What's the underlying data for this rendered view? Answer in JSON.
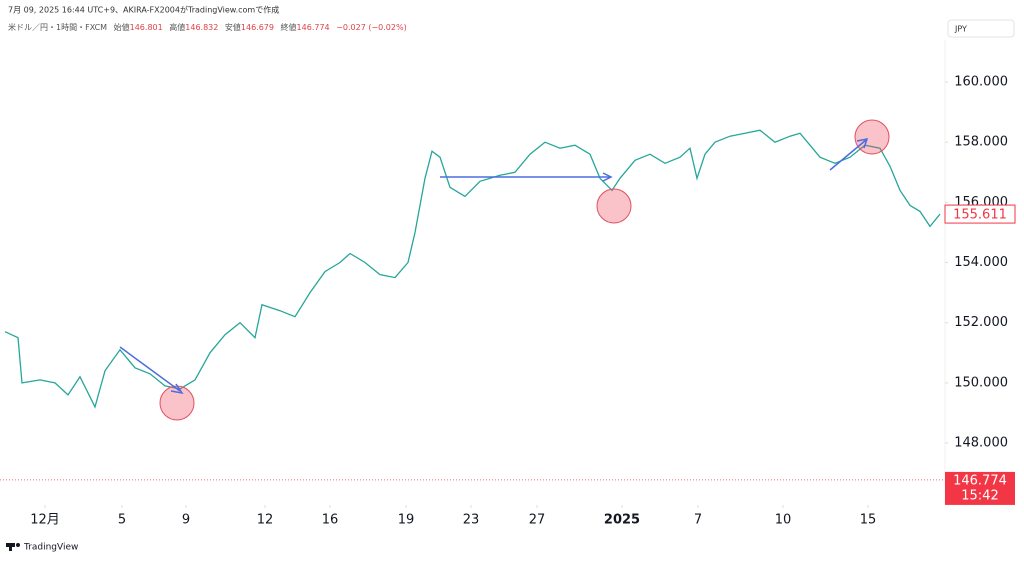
{
  "header": {
    "created": "7月 09, 2025 16:44 UTC+9、AKIRA-FX2004がTradingView.comで作成",
    "symbol": "米ドル／円・1時間・FXCM",
    "open_label": "始値",
    "open": "146.801",
    "high_label": "高値",
    "high": "146.832",
    "low_label": "安値",
    "low": "146.679",
    "close_label": "終値",
    "close": "146.774",
    "change": "−0.027 (−0.02%)"
  },
  "currency": "JPY",
  "footer": "TradingView",
  "chart_data": {
    "type": "line",
    "x": [
      5,
      18,
      22,
      40,
      55,
      68,
      80,
      95,
      105,
      120,
      135,
      150,
      165,
      180,
      195,
      210,
      225,
      240,
      255,
      262,
      280,
      295,
      310,
      325,
      340,
      350,
      365,
      380,
      395,
      408,
      415,
      425,
      432,
      440,
      450,
      465,
      480,
      500,
      515,
      530,
      545,
      560,
      575,
      590,
      600,
      612,
      620,
      635,
      650,
      665,
      680,
      690,
      697,
      705,
      715,
      730,
      745,
      760,
      775,
      790,
      800,
      810,
      820,
      835,
      850,
      865,
      880,
      890,
      900,
      910,
      920,
      930,
      940
    ],
    "values": [
      151.7,
      151.5,
      150.0,
      150.1,
      150.0,
      149.6,
      150.2,
      149.2,
      150.4,
      151.1,
      150.5,
      150.3,
      149.9,
      149.8,
      150.1,
      151.0,
      151.6,
      152.0,
      151.5,
      152.6,
      152.4,
      152.2,
      153.0,
      153.7,
      154.0,
      154.3,
      154.0,
      153.6,
      153.5,
      154.0,
      155.0,
      156.8,
      157.7,
      157.5,
      156.5,
      156.2,
      156.7,
      156.9,
      157.0,
      157.6,
      158.0,
      157.8,
      157.9,
      157.6,
      156.8,
      156.4,
      156.8,
      157.4,
      157.6,
      157.3,
      157.5,
      157.8,
      156.8,
      157.6,
      158.0,
      158.2,
      158.3,
      158.4,
      158.0,
      158.2,
      158.3,
      157.9,
      157.5,
      157.3,
      157.5,
      157.9,
      157.8,
      157.2,
      156.4,
      155.9,
      155.7,
      155.2,
      155.611
    ],
    "color": "#26a69a",
    "xlim": [
      0,
      945
    ],
    "xticks": [
      {
        "value": 45,
        "label": "12月"
      },
      {
        "value": 122,
        "label": "5"
      },
      {
        "value": 186,
        "label": "9"
      },
      {
        "value": 265,
        "label": "12"
      },
      {
        "value": 330,
        "label": "16"
      },
      {
        "value": 406,
        "label": "19"
      },
      {
        "value": 471,
        "label": "23"
      },
      {
        "value": 537,
        "label": "27"
      },
      {
        "value": 622,
        "label": "2025"
      },
      {
        "value": 698,
        "label": "7"
      },
      {
        "value": 783,
        "label": "10"
      },
      {
        "value": 868,
        "label": "15"
      }
    ],
    "ylim": [
      145.94,
      161.73
    ],
    "yticks": [
      {
        "value": 148,
        "label": "148.000"
      },
      {
        "value": 150,
        "label": "150.000"
      },
      {
        "value": 152,
        "label": "152.000"
      },
      {
        "value": 154,
        "label": "154.000"
      },
      {
        "value": 156,
        "label": "156.000"
      },
      {
        "value": 158,
        "label": "158.000"
      },
      {
        "value": 160,
        "label": "160.000"
      }
    ],
    "last_value": 155.611,
    "current_price": 146.774,
    "current_time": "15:42"
  }
}
